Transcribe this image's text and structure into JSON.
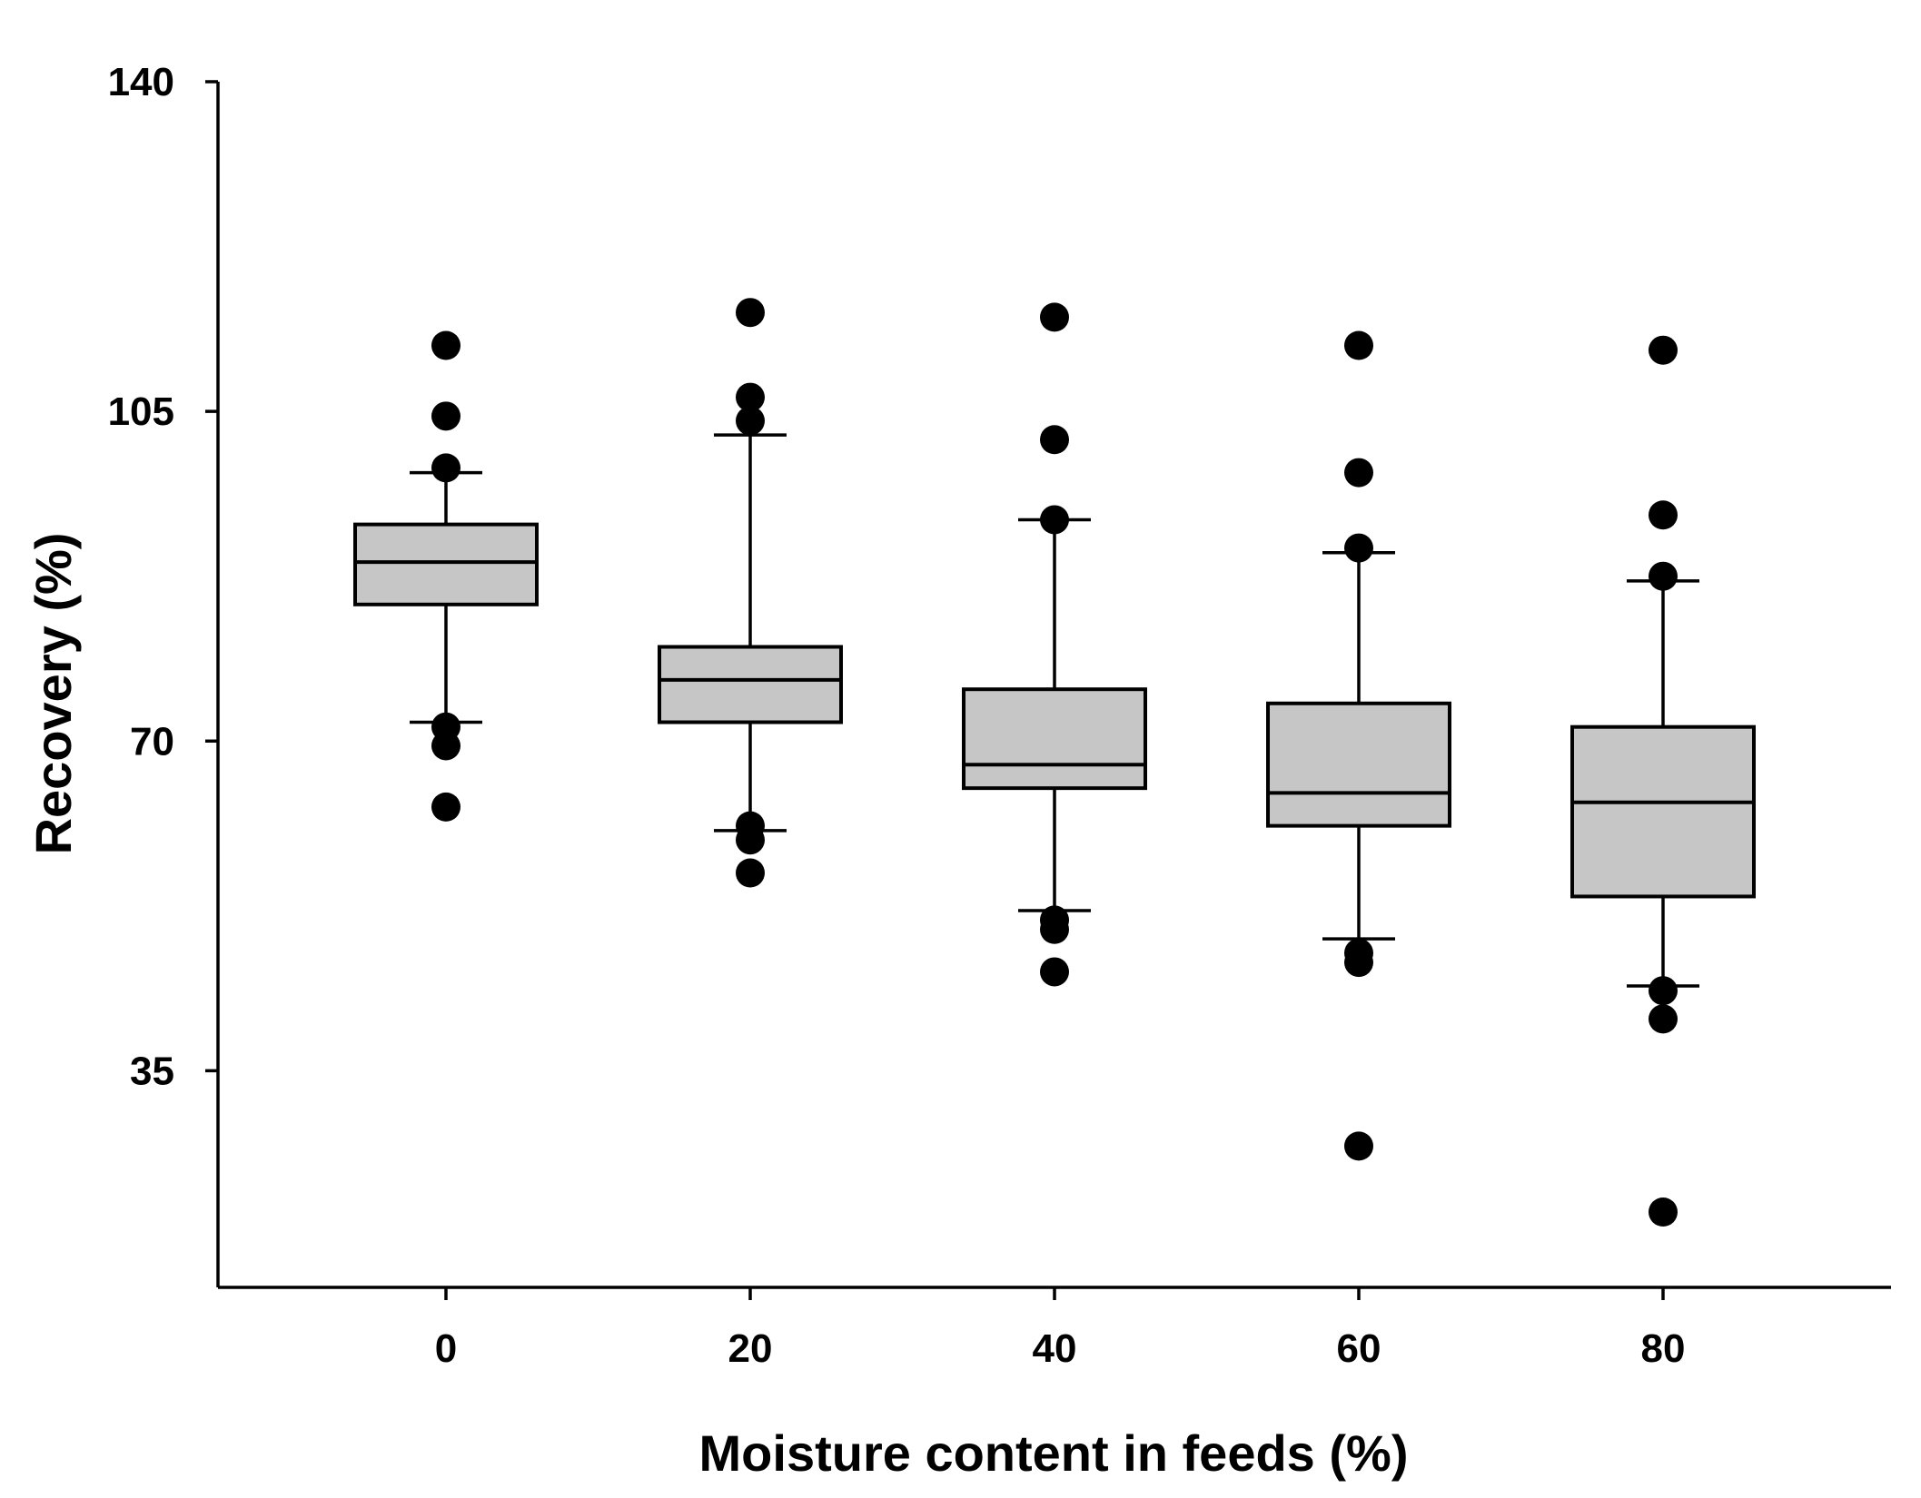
{
  "chart_data": {
    "type": "box",
    "title": "",
    "xlabel": "Moisture content in feeds (%)",
    "ylabel": "Recovery (%)",
    "ylim": [
      12,
      140
    ],
    "yticks": [
      35,
      70,
      105,
      140
    ],
    "categories": [
      "0",
      "20",
      "40",
      "60",
      "80"
    ],
    "boxes": [
      {
        "category": "0",
        "q1": 84.5,
        "median": 89,
        "q3": 93,
        "whisker_low": 72,
        "whisker_high": 98.5,
        "outliers": [
          112,
          104.5,
          99,
          71.5,
          69.5,
          63
        ]
      },
      {
        "category": "20",
        "q1": 72,
        "median": 76.5,
        "q3": 80,
        "whisker_low": 60.5,
        "whisker_high": 102.5,
        "outliers": [
          115.5,
          106.5,
          104,
          61,
          59.5,
          56
        ]
      },
      {
        "category": "40",
        "q1": 65,
        "median": 67.5,
        "q3": 75.5,
        "whisker_low": 52,
        "whisker_high": 93.5,
        "outliers": [
          115,
          102,
          93.5,
          51,
          50,
          45.5
        ]
      },
      {
        "category": "60",
        "q1": 61,
        "median": 64.5,
        "q3": 74,
        "whisker_low": 49,
        "whisker_high": 90,
        "outliers": [
          112,
          98.5,
          90.5,
          47.5,
          46.5,
          27
        ]
      },
      {
        "category": "80",
        "q1": 53.5,
        "median": 63.5,
        "q3": 71.5,
        "whisker_low": 44,
        "whisker_high": 87,
        "outliers": [
          111.5,
          94,
          87.5,
          43.5,
          40.5,
          20
        ]
      }
    ]
  }
}
